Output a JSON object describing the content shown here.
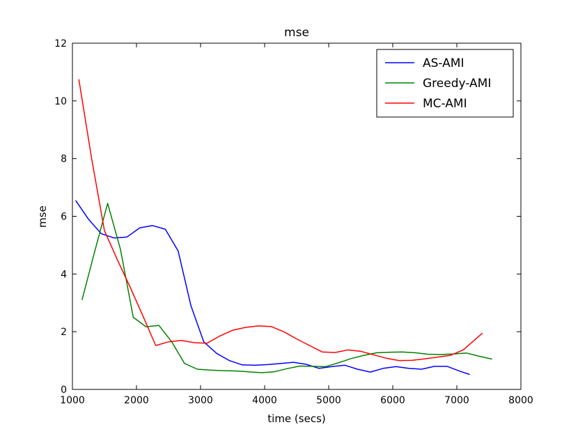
{
  "chart_data": {
    "type": "line",
    "title": "mse",
    "xlabel": "time (secs)",
    "ylabel": "mse",
    "xlim": [
      1000,
      8000
    ],
    "ylim": [
      0,
      12
    ],
    "xticks": [
      1000,
      2000,
      3000,
      4000,
      5000,
      6000,
      7000,
      8000
    ],
    "yticks": [
      0,
      2,
      4,
      6,
      8,
      10,
      12
    ],
    "grid": false,
    "legend": "top-right",
    "series": [
      {
        "name": "AS-AMI",
        "color": "#0000ff",
        "x": [
          1050,
          1250,
          1450,
          1650,
          1850,
          2050,
          2250,
          2450,
          2650,
          2850,
          3050,
          3250,
          3450,
          3650,
          3850,
          4050,
          4250,
          4450,
          4650,
          4850,
          5050,
          5250,
          5450,
          5650,
          5850,
          6050,
          6250,
          6450,
          6650,
          6850,
          7050,
          7200
        ],
        "y": [
          6.55,
          5.9,
          5.4,
          5.25,
          5.28,
          5.6,
          5.68,
          5.55,
          4.8,
          2.9,
          1.65,
          1.25,
          1.0,
          0.85,
          0.84,
          0.86,
          0.9,
          0.94,
          0.87,
          0.73,
          0.79,
          0.84,
          0.7,
          0.6,
          0.73,
          0.79,
          0.73,
          0.7,
          0.8,
          0.8,
          0.63,
          0.52
        ]
      },
      {
        "name": "Greedy-AMI",
        "color": "#008000",
        "x": [
          1150,
          1350,
          1550,
          1750,
          1950,
          2150,
          2350,
          2550,
          2750,
          2950,
          3150,
          3350,
          3550,
          3750,
          3950,
          4150,
          4350,
          4550,
          4750,
          4950,
          5150,
          5350,
          5550,
          5750,
          5950,
          6150,
          6350,
          6550,
          6750,
          6950,
          7150,
          7350,
          7550
        ],
        "y": [
          3.1,
          4.8,
          6.45,
          4.85,
          2.5,
          2.17,
          2.22,
          1.65,
          0.9,
          0.7,
          0.67,
          0.65,
          0.64,
          0.61,
          0.58,
          0.61,
          0.72,
          0.81,
          0.8,
          0.79,
          0.92,
          1.07,
          1.18,
          1.27,
          1.29,
          1.3,
          1.27,
          1.22,
          1.21,
          1.23,
          1.26,
          1.15,
          1.05
        ]
      },
      {
        "name": "MC-AMI",
        "color": "#ff0000",
        "x": [
          1100,
          1300,
          1500,
          1700,
          1900,
          2100,
          2300,
          2500,
          2700,
          2900,
          3100,
          3300,
          3500,
          3700,
          3900,
          4100,
          4300,
          4500,
          4700,
          4900,
          5100,
          5300,
          5500,
          5700,
          5900,
          6100,
          6300,
          6500,
          6700,
          6900,
          7100,
          7400
        ],
        "y": [
          10.75,
          8.0,
          5.5,
          4.5,
          3.55,
          2.55,
          1.52,
          1.65,
          1.7,
          1.62,
          1.6,
          1.85,
          2.05,
          2.15,
          2.2,
          2.18,
          2.0,
          1.75,
          1.52,
          1.3,
          1.28,
          1.37,
          1.32,
          1.2,
          1.08,
          1.0,
          1.01,
          1.06,
          1.12,
          1.18,
          1.37,
          1.95
        ]
      }
    ]
  }
}
